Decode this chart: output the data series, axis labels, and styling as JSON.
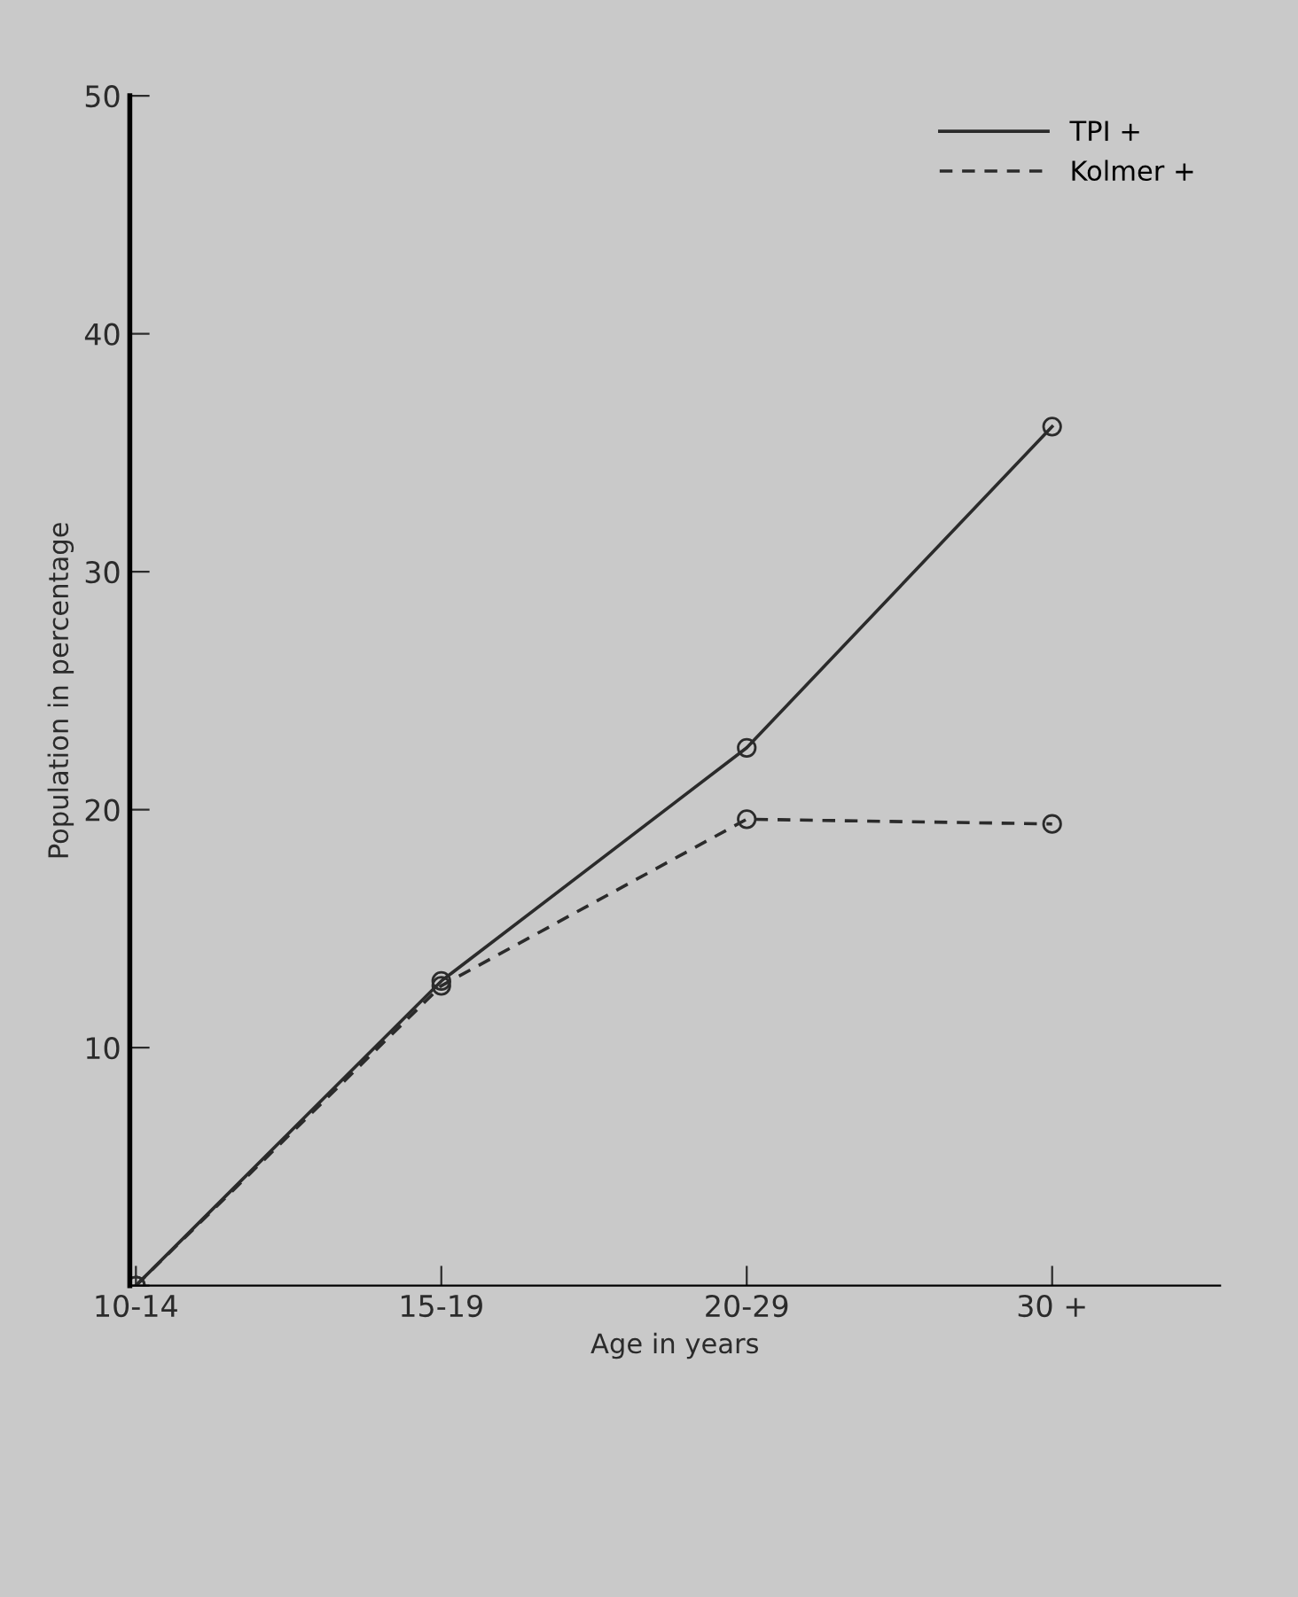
{
  "chart_data": {
    "type": "line",
    "xlabel": "Age in years",
    "ylabel": "Population in percentage",
    "categories": [
      "10-14",
      "15-19",
      "20-29",
      "30 +"
    ],
    "series": [
      {
        "name": "TPI +",
        "color": "#2b2b2b",
        "line_style": "solid",
        "values": [
          0,
          12.8,
          22.6,
          36.1
        ]
      },
      {
        "name": "Kolmer +",
        "color": "#2b2b2b",
        "line_style": "dashed",
        "values": [
          0,
          12.6,
          19.6,
          19.4
        ]
      }
    ],
    "ylim": [
      0,
      50
    ],
    "yticks": [
      {
        "value": 0,
        "label": null
      },
      10,
      20,
      30,
      40,
      50
    ],
    "marker": "circle",
    "legend": "top right",
    "grid": false
  }
}
